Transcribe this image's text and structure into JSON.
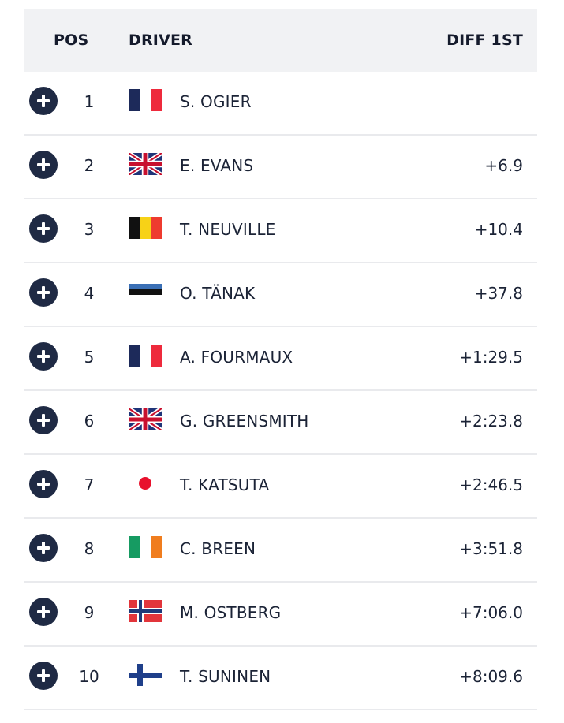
{
  "header": {
    "pos": "POS",
    "driver": "DRIVER",
    "diff": "DIFF 1ST"
  },
  "rows": [
    {
      "pos": "1",
      "driver": "S. OGIER",
      "diff": "",
      "flag": "france-flag-icon"
    },
    {
      "pos": "2",
      "driver": "E. EVANS",
      "diff": "+6.9",
      "flag": "uk-flag-icon"
    },
    {
      "pos": "3",
      "driver": "T. NEUVILLE",
      "diff": "+10.4",
      "flag": "belgium-flag-icon"
    },
    {
      "pos": "4",
      "driver": "O. TÄNAK",
      "diff": "+37.8",
      "flag": "estonia-flag-icon"
    },
    {
      "pos": "5",
      "driver": "A. FOURMAUX",
      "diff": "+1:29.5",
      "flag": "france-flag-icon"
    },
    {
      "pos": "6",
      "driver": "G. GREENSMITH",
      "diff": "+2:23.8",
      "flag": "uk-flag-icon"
    },
    {
      "pos": "7",
      "driver": "T. KATSUTA",
      "diff": "+2:46.5",
      "flag": "japan-flag-icon"
    },
    {
      "pos": "8",
      "driver": "C. BREEN",
      "diff": "+3:51.8",
      "flag": "ireland-flag-icon"
    },
    {
      "pos": "9",
      "driver": "M. OSTBERG",
      "diff": "+7:06.0",
      "flag": "norway-flag-icon"
    },
    {
      "pos": "10",
      "driver": "T. SUNINEN",
      "diff": "+8:09.6",
      "flag": "finland-flag-icon"
    }
  ],
  "icons": {
    "expand": "plus-circle-icon"
  },
  "colors": {
    "header_bg": "#f1f2f4",
    "expand_button": "#1f2a44",
    "text": "#1b2336",
    "divider": "#e9eaed"
  }
}
